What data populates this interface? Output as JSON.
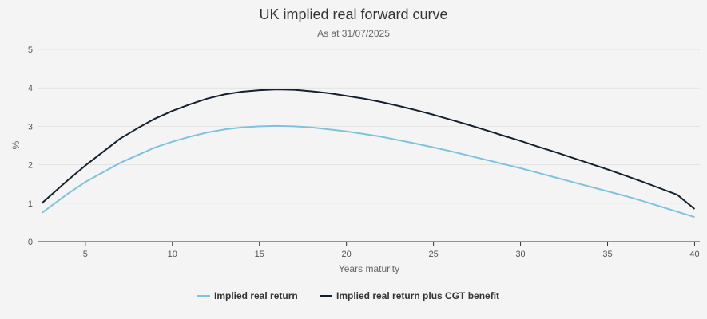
{
  "chart_data": {
    "type": "line",
    "title": "UK implied real forward curve",
    "subtitle": "As at 31/07/2025",
    "xlabel": "Years maturity",
    "ylabel": "%",
    "xlim": [
      2.3,
      40.3
    ],
    "ylim": [
      0,
      5
    ],
    "x_ticks": [
      5,
      10,
      15,
      20,
      25,
      30,
      35,
      40
    ],
    "y_ticks": [
      0,
      1,
      2,
      3,
      4,
      5
    ],
    "grid": true,
    "legend_position": "bottom",
    "series": [
      {
        "name": "Implied real return",
        "color": "#7ec3de",
        "points": [
          [
            2.5,
            0.75
          ],
          [
            4,
            1.25
          ],
          [
            5,
            1.55
          ],
          [
            6,
            1.8
          ],
          [
            7,
            2.05
          ],
          [
            8,
            2.25
          ],
          [
            9,
            2.45
          ],
          [
            10,
            2.6
          ],
          [
            11,
            2.73
          ],
          [
            12,
            2.84
          ],
          [
            13,
            2.92
          ],
          [
            14,
            2.97
          ],
          [
            15,
            3.0
          ],
          [
            16,
            3.01
          ],
          [
            17,
            3.0
          ],
          [
            18,
            2.97
          ],
          [
            19,
            2.92
          ],
          [
            20,
            2.87
          ],
          [
            21,
            2.8
          ],
          [
            22,
            2.73
          ],
          [
            23,
            2.64
          ],
          [
            24,
            2.55
          ],
          [
            25,
            2.45
          ],
          [
            26,
            2.35
          ],
          [
            27,
            2.24
          ],
          [
            28,
            2.13
          ],
          [
            29,
            2.02
          ],
          [
            30,
            1.91
          ],
          [
            31,
            1.79
          ],
          [
            32,
            1.67
          ],
          [
            33,
            1.55
          ],
          [
            34,
            1.43
          ],
          [
            35,
            1.31
          ],
          [
            36,
            1.19
          ],
          [
            37,
            1.06
          ],
          [
            38,
            0.92
          ],
          [
            39,
            0.78
          ],
          [
            40,
            0.64
          ]
        ]
      },
      {
        "name": "Implied real return plus CGT benefit",
        "color": "#13202e",
        "points": [
          [
            2.5,
            1.0
          ],
          [
            4,
            1.6
          ],
          [
            5,
            1.98
          ],
          [
            6,
            2.33
          ],
          [
            7,
            2.68
          ],
          [
            8,
            2.95
          ],
          [
            9,
            3.2
          ],
          [
            10,
            3.4
          ],
          [
            11,
            3.57
          ],
          [
            12,
            3.72
          ],
          [
            13,
            3.83
          ],
          [
            14,
            3.9
          ],
          [
            15,
            3.94
          ],
          [
            16,
            3.96
          ],
          [
            17,
            3.95
          ],
          [
            18,
            3.91
          ],
          [
            19,
            3.86
          ],
          [
            20,
            3.79
          ],
          [
            21,
            3.72
          ],
          [
            22,
            3.63
          ],
          [
            23,
            3.53
          ],
          [
            24,
            3.42
          ],
          [
            25,
            3.3
          ],
          [
            26,
            3.17
          ],
          [
            27,
            3.04
          ],
          [
            28,
            2.9
          ],
          [
            29,
            2.76
          ],
          [
            30,
            2.62
          ],
          [
            31,
            2.47
          ],
          [
            32,
            2.33
          ],
          [
            33,
            2.18
          ],
          [
            34,
            2.03
          ],
          [
            35,
            1.88
          ],
          [
            36,
            1.72
          ],
          [
            37,
            1.56
          ],
          [
            38,
            1.39
          ],
          [
            39,
            1.22
          ],
          [
            40,
            0.85
          ]
        ]
      }
    ]
  }
}
